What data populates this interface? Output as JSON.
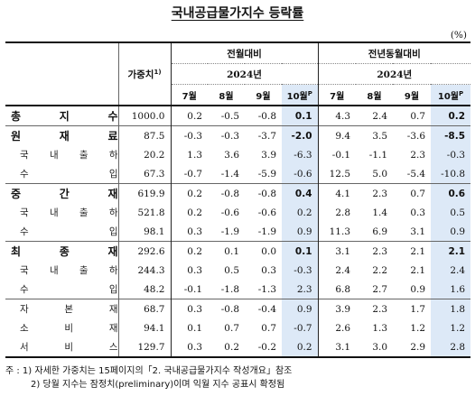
{
  "title": "국내공급물가지수 등락률",
  "unit": "(%)",
  "header": {
    "weight": "가중치",
    "weight_note": "1)",
    "group_mom": "전월대비",
    "group_yoy": "전년동월대비",
    "year_mom": "2024년",
    "year_yoy": "2024년",
    "months": [
      "7월",
      "8월",
      "9월",
      "10월"
    ],
    "provisional_mark": "P"
  },
  "rows": [
    {
      "label": "총 지 수",
      "level": "top",
      "weight": "1000.0",
      "mom": [
        "0.2",
        "-0.5",
        "-0.8",
        "0.1"
      ],
      "yoy": [
        "4.3",
        "2.4",
        "0.7",
        "0.2"
      ]
    },
    {
      "label": "원 재 료",
      "level": "top",
      "weight": "87.5",
      "mom": [
        "-0.3",
        "-0.3",
        "-3.7",
        "-2.0"
      ],
      "yoy": [
        "9.4",
        "3.5",
        "-3.6",
        "-8.5"
      ]
    },
    {
      "label": "국 내 출 하",
      "level": "sub",
      "weight": "20.2",
      "mom": [
        "1.3",
        "3.6",
        "3.9",
        "-6.3"
      ],
      "yoy": [
        "-0.1",
        "-1.1",
        "2.3",
        "-0.3"
      ]
    },
    {
      "label": "수 입",
      "level": "sub",
      "weight": "67.3",
      "mom": [
        "-0.7",
        "-1.4",
        "-5.9",
        "-0.6"
      ],
      "yoy": [
        "12.5",
        "5.0",
        "-5.4",
        "-10.8"
      ]
    },
    {
      "label": "중 간 재",
      "level": "top",
      "weight": "619.9",
      "mom": [
        "0.2",
        "-0.8",
        "-0.8",
        "0.4"
      ],
      "yoy": [
        "4.1",
        "2.3",
        "0.7",
        "0.6"
      ]
    },
    {
      "label": "국 내 출 하",
      "level": "sub",
      "weight": "521.8",
      "mom": [
        "0.2",
        "-0.6",
        "-0.6",
        "0.2"
      ],
      "yoy": [
        "2.8",
        "1.4",
        "0.3",
        "0.5"
      ]
    },
    {
      "label": "수 입",
      "level": "sub",
      "weight": "98.1",
      "mom": [
        "0.3",
        "-1.9",
        "-1.9",
        "0.9"
      ],
      "yoy": [
        "11.3",
        "6.9",
        "3.1",
        "0.9"
      ]
    },
    {
      "label": "최 종 재",
      "level": "top",
      "weight": "292.6",
      "mom": [
        "0.2",
        "0.1",
        "0.0",
        "0.1"
      ],
      "yoy": [
        "3.1",
        "2.3",
        "2.1",
        "2.1"
      ]
    },
    {
      "label": "국 내 출 하",
      "level": "sub",
      "weight": "244.3",
      "mom": [
        "0.3",
        "0.5",
        "0.3",
        "-0.3"
      ],
      "yoy": [
        "2.4",
        "2.2",
        "2.1",
        "2.4"
      ]
    },
    {
      "label": "수 입",
      "level": "sub",
      "weight": "48.2",
      "mom": [
        "-0.1",
        "-1.8",
        "-1.3",
        "2.3"
      ],
      "yoy": [
        "6.8",
        "2.7",
        "0.9",
        "1.6"
      ]
    },
    {
      "label": "자 본 재",
      "level": "sub",
      "weight": "68.7",
      "mom": [
        "0.3",
        "-0.8",
        "-0.4",
        "0.9"
      ],
      "yoy": [
        "3.9",
        "2.3",
        "1.7",
        "1.8"
      ]
    },
    {
      "label": "소 비 재",
      "level": "sub",
      "weight": "94.1",
      "mom": [
        "0.1",
        "0.7",
        "0.7",
        "-0.7"
      ],
      "yoy": [
        "2.6",
        "1.3",
        "1.2",
        "1.2"
      ]
    },
    {
      "label": "서 비 스",
      "level": "sub",
      "weight": "129.7",
      "mom": [
        "0.3",
        "0.2",
        "-0.2",
        "0.2"
      ],
      "yoy": [
        "3.1",
        "3.0",
        "2.9",
        "2.8"
      ]
    }
  ],
  "notes": [
    "주 : 1) 자세한 가중치는 15페이지의「2. 국내공급물가지수 작성개요」참조",
    "2) 당월 지수는 잠정치(preliminary)이며 익월 지수 공표시 확정됨"
  ]
}
